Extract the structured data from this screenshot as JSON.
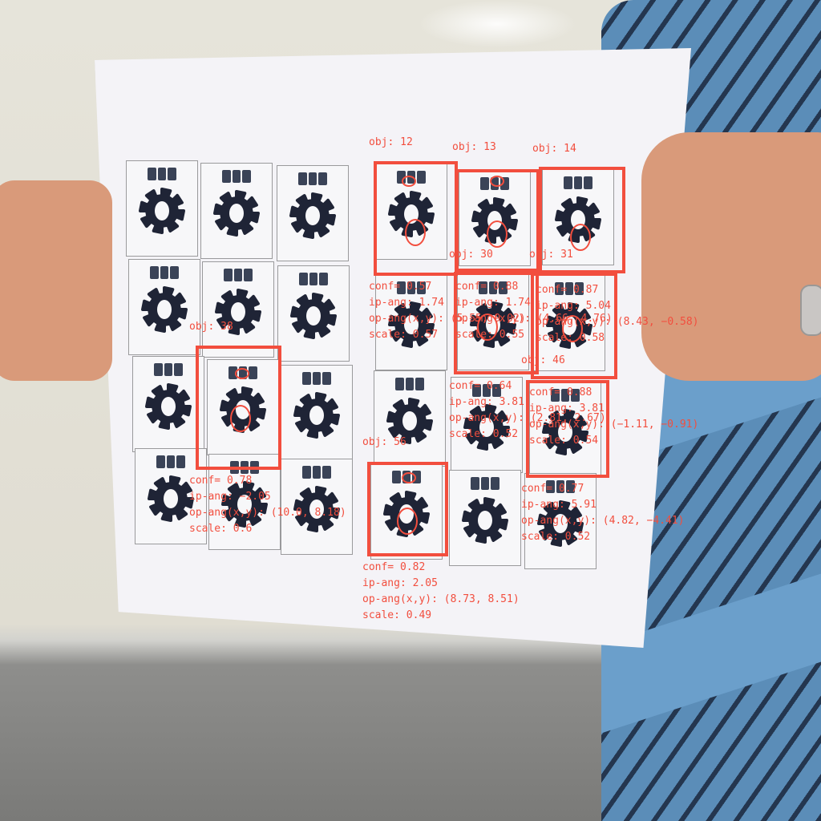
{
  "colors": {
    "annotation": "#f24e3e",
    "gear": "#1f2436",
    "paper": "#f4f3f7"
  },
  "tile_icon": "gear-icon",
  "detections": [
    {
      "obj": "obj: 12"
    },
    {
      "obj": "obj: 13"
    },
    {
      "obj": "obj: 14"
    },
    {
      "obj": "obj: 38",
      "lines": [
        "conf= 0.78",
        "ip-ang: −2.05",
        "op-ang(x,y): (10.0, 8.18)",
        "scale: 0.6"
      ]
    },
    {
      "obj": "obj: 30",
      "lines": [
        "conf= 0.57",
        "ip-ang: 1.74",
        "op-ang(x,y): (5.55, 9.02)",
        "scale: 0.57"
      ]
    },
    {
      "obj": "obj: 31",
      "lines": [
        "conf= 0.88",
        "ip-ang: 1.74",
        "op-ang(x,y): (4.66, 4.76)",
        "scale: 0.55"
      ]
    },
    {
      "obj": "obj: 46",
      "lines": [
        "conf= 0.87",
        "ip-ang: 5.04",
        "op-ang(x,y): (8.43, −0.58)",
        "scale: 0.58"
      ]
    },
    {
      "obj": "obj: 56",
      "lines": [
        "conf= 0.64",
        "ip-ang: 3.81",
        "op-ang(x,y): (2.81, 2.67)",
        "scale: 0.52"
      ]
    },
    {
      "obj": "",
      "lines": [
        "conf= 0.88",
        "ip-ang: 3.81",
        "op-ang(x,y): (−1.11, −0.91)",
        "scale: 0.54"
      ]
    },
    {
      "obj": "",
      "lines": [
        "conf= 0.77",
        "ip-ang: 5.91",
        "op-ang(x,y): (4.82, −4.41)",
        "scale: 0.52"
      ]
    },
    {
      "obj": "",
      "lines": [
        "conf= 0.82",
        "ip-ang: 2.05",
        "op-ang(x,y): (8.73, 8.51)",
        "scale: 0.49"
      ]
    }
  ]
}
